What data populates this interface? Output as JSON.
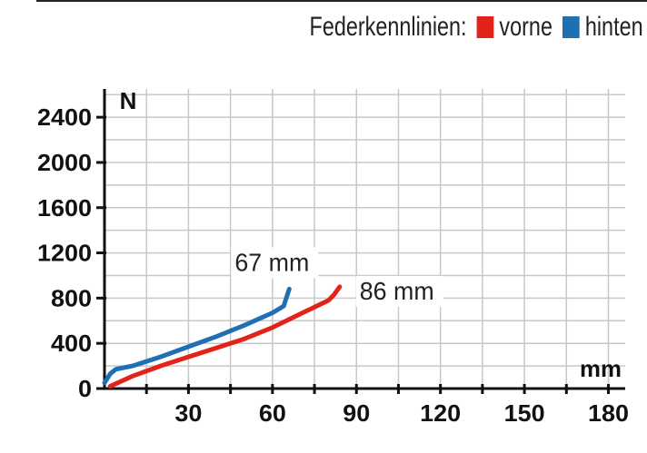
{
  "legend": {
    "title": "Federkennlinien:",
    "items": [
      {
        "label": "vorne",
        "color": "#e2231a"
      },
      {
        "label": "hinten",
        "color": "#1f6fb5"
      }
    ]
  },
  "chart_data": {
    "type": "line",
    "title": "Federkennlinien:",
    "xlabel": "mm",
    "ylabel": "N",
    "xlim": [
      0,
      186
    ],
    "ylim": [
      0,
      2650
    ],
    "xticks": [
      30,
      60,
      90,
      120,
      150,
      180
    ],
    "yticks": [
      0,
      400,
      800,
      1200,
      1600,
      2000,
      2400
    ],
    "grid": true,
    "legend_position": "top-right",
    "series": [
      {
        "name": "vorne",
        "color": "#e2231a",
        "x": [
          2,
          10,
          20,
          30,
          40,
          50,
          60,
          70,
          80,
          82,
          84
        ],
        "y": [
          20,
          110,
          200,
          280,
          360,
          440,
          540,
          660,
          780,
          830,
          900
        ],
        "annotation": "86 mm"
      },
      {
        "name": "hinten",
        "color": "#1f6fb5",
        "x": [
          0,
          2,
          4,
          10,
          20,
          30,
          40,
          50,
          60,
          64,
          66
        ],
        "y": [
          50,
          130,
          170,
          200,
          280,
          370,
          460,
          560,
          670,
          730,
          880
        ],
        "annotation": "67 mm"
      }
    ]
  }
}
